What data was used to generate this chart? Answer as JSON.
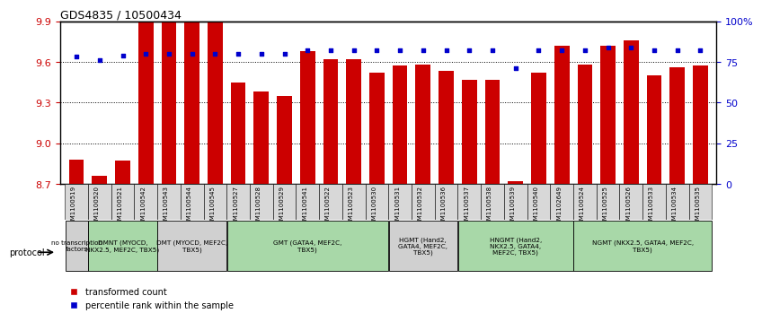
{
  "title": "GDS4835 / 10500434",
  "samples": [
    "GSM1100519",
    "GSM1100520",
    "GSM1100521",
    "GSM1100542",
    "GSM1100543",
    "GSM1100544",
    "GSM1100545",
    "GSM1100527",
    "GSM1100528",
    "GSM1100529",
    "GSM1100541",
    "GSM1100522",
    "GSM1100523",
    "GSM1100530",
    "GSM1100531",
    "GSM1100532",
    "GSM1100536",
    "GSM1100537",
    "GSM1100538",
    "GSM1100539",
    "GSM1100540",
    "GSM1102649",
    "GSM1100524",
    "GSM1100525",
    "GSM1100526",
    "GSM1100533",
    "GSM1100534",
    "GSM1100535"
  ],
  "bar_values": [
    8.88,
    8.76,
    8.87,
    9.9,
    9.9,
    9.9,
    9.9,
    9.45,
    9.38,
    9.35,
    9.68,
    9.62,
    9.62,
    9.52,
    9.57,
    9.58,
    9.53,
    9.47,
    9.47,
    8.72,
    9.52,
    9.72,
    9.58,
    9.72,
    9.76,
    9.5,
    9.56,
    9.57
  ],
  "dot_values": [
    78,
    76,
    79,
    80,
    80,
    80,
    80,
    80,
    80,
    80,
    82,
    82,
    82,
    82,
    82,
    82,
    82,
    82,
    82,
    71,
    82,
    82,
    82,
    84,
    84,
    82,
    82,
    82
  ],
  "ymin": 8.7,
  "ymax": 9.9,
  "yticks_left": [
    8.7,
    9.0,
    9.3,
    9.6,
    9.9
  ],
  "yticks_right": [
    0,
    25,
    50,
    75,
    100
  ],
  "bar_color": "#CC0000",
  "dot_color": "#0000CC",
  "groups": [
    {
      "label": "no transcription\nfactors",
      "start": 0,
      "end": 0,
      "color": "#d0d0d0"
    },
    {
      "label": "DMNT (MYOCD,\nNKX2.5, MEF2C, TBX5)",
      "start": 1,
      "end": 3,
      "color": "#a8d8a8"
    },
    {
      "label": "DMT (MYOCD, MEF2C,\nTBX5)",
      "start": 4,
      "end": 6,
      "color": "#d0d0d0"
    },
    {
      "label": "GMT (GATA4, MEF2C,\nTBX5)",
      "start": 7,
      "end": 13,
      "color": "#a8d8a8"
    },
    {
      "label": "HGMT (Hand2,\nGATA4, MEF2C,\nTBX5)",
      "start": 14,
      "end": 16,
      "color": "#d0d0d0"
    },
    {
      "label": "HNGMT (Hand2,\nNKX2.5, GATA4,\nMEF2C, TBX5)",
      "start": 17,
      "end": 21,
      "color": "#a8d8a8"
    },
    {
      "label": "NGMT (NKX2.5, GATA4, MEF2C,\nTBX5)",
      "start": 22,
      "end": 27,
      "color": "#a8d8a8"
    }
  ],
  "legend_label_bar": "transformed count",
  "legend_label_dot": "percentile rank within the sample"
}
